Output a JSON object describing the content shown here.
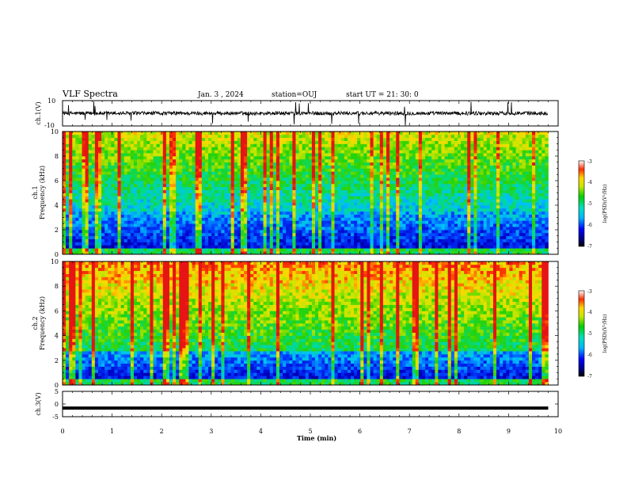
{
  "header": {
    "title": "VLF Spectra",
    "date": "Jan. 3 , 2024",
    "station": "station=OUJ",
    "start": "start UT = 21: 30: 0"
  },
  "chart_data": [
    {
      "id": "ch1-waveform",
      "type": "line",
      "ylabel": "ch.1(V)",
      "ylim": [
        -10,
        10
      ],
      "yticks": [
        "10",
        "-10"
      ],
      "x_range_min": [
        0,
        10
      ],
      "data_extent_min": 9.8,
      "baseline": 0,
      "noise_amplitude": 1.5
    },
    {
      "id": "ch1-spectrogram",
      "type": "heatmap",
      "ylabel": "ch.1",
      "ylabel2": "Frequency (kHz)",
      "ylim": [
        0,
        10
      ],
      "yticks": [
        "0",
        "2",
        "4",
        "6",
        "8",
        "10"
      ],
      "x_range_min": [
        0,
        10
      ],
      "data_extent_min": 9.8,
      "low_band_khz": [
        0,
        3.5
      ],
      "colorbar": {
        "label": "log(PSD)(V²/Hz)",
        "range": [
          -7,
          -3
        ],
        "ticks": [
          "-3",
          "-4",
          "-5",
          "-6",
          "-7"
        ]
      }
    },
    {
      "id": "ch2-spectrogram",
      "type": "heatmap",
      "ylabel": "ch.2",
      "ylabel2": "Frequency (kHz)",
      "ylim": [
        0,
        10
      ],
      "yticks": [
        "0",
        "2",
        "4",
        "6",
        "8",
        "10"
      ],
      "x_range_min": [
        0,
        10
      ],
      "data_extent_min": 9.8,
      "low_band_khz": [
        0,
        2.8
      ],
      "colorbar": {
        "label": "log(PSD)(V²/Hz)",
        "range": [
          -7,
          -3
        ],
        "ticks": [
          "-3",
          "-4",
          "-5",
          "-6",
          "-7"
        ]
      }
    },
    {
      "id": "ch3-waveform",
      "type": "line",
      "ylabel": "ch.3(V)",
      "ylim": [
        -5,
        5
      ],
      "yticks": [
        "5",
        "0",
        "-5"
      ],
      "x_range_min": [
        0,
        10
      ],
      "data_extent_min": 9.8,
      "baseline": -1.6,
      "xlabel": "Time (min)",
      "xticks": [
        "0",
        "1",
        "2",
        "3",
        "4",
        "5",
        "6",
        "7",
        "8",
        "9",
        "10"
      ]
    }
  ]
}
